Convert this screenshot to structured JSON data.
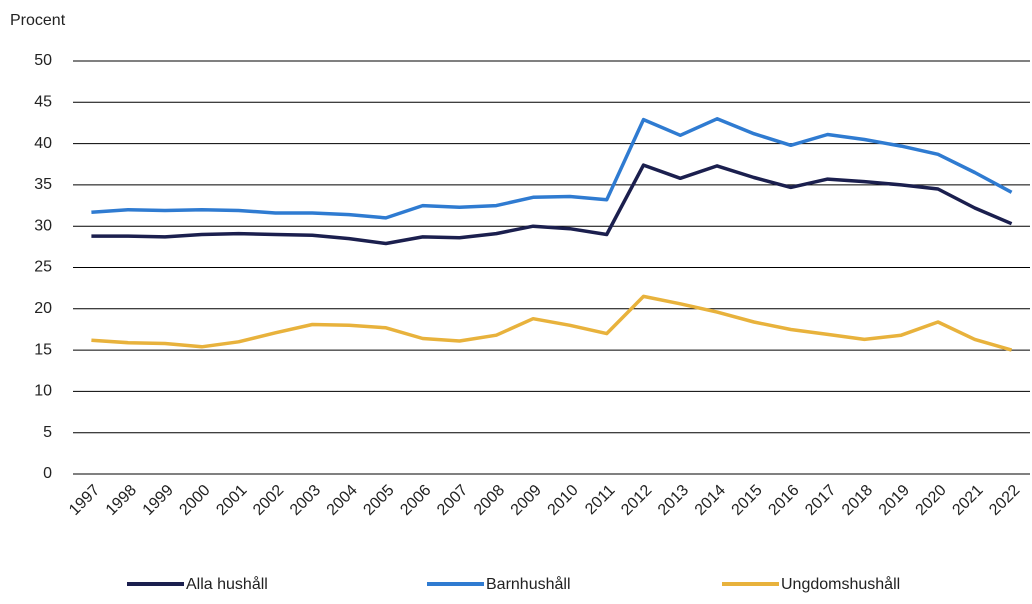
{
  "chart_data": {
    "type": "line",
    "y_label": "Procent",
    "categories": [
      "1997",
      "1998",
      "1999",
      "2000",
      "2001",
      "2002",
      "2003",
      "2004",
      "2005",
      "2006",
      "2007",
      "2008",
      "2009",
      "2010",
      "2011",
      "2012",
      "2013",
      "2014",
      "2015",
      "2016",
      "2017",
      "2018",
      "2019",
      "2020",
      "2021",
      "2022"
    ],
    "series": [
      {
        "name": "Alla hushåll",
        "color": "#1b1f4e",
        "values": [
          28.8,
          28.8,
          28.7,
          29.0,
          29.1,
          29.0,
          28.9,
          28.5,
          27.9,
          28.7,
          28.6,
          29.1,
          30.0,
          29.7,
          29.0,
          37.4,
          35.8,
          37.3,
          35.9,
          34.7,
          35.7,
          35.4,
          35.0,
          34.5,
          32.2,
          30.3
        ]
      },
      {
        "name": "Barnhushåll",
        "color": "#2f7bd1",
        "values": [
          31.7,
          32.0,
          31.9,
          32.0,
          31.9,
          31.6,
          31.6,
          31.4,
          31.0,
          32.5,
          32.3,
          32.5,
          33.5,
          33.6,
          33.2,
          42.9,
          41.0,
          43.0,
          41.2,
          39.8,
          41.1,
          40.5,
          39.7,
          38.7,
          36.5,
          34.1
        ]
      },
      {
        "name": "Ungdomshushåll",
        "color": "#e8b23c",
        "values": [
          16.2,
          15.9,
          15.8,
          15.4,
          16.0,
          17.1,
          18.1,
          18.0,
          17.7,
          16.4,
          16.1,
          16.8,
          18.8,
          18.0,
          17.0,
          21.5,
          20.6,
          19.6,
          18.4,
          17.5,
          16.9,
          16.3,
          16.8,
          18.4,
          16.3,
          15.0
        ]
      }
    ],
    "ylim": [
      0,
      50
    ],
    "yticks": [
      0,
      5,
      10,
      15,
      20,
      25,
      30,
      35,
      40,
      45,
      50
    ],
    "grid": true
  }
}
